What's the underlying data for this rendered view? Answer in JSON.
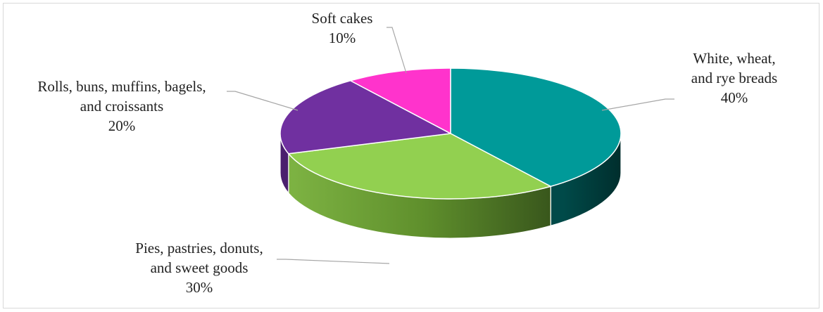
{
  "chart_data": {
    "type": "pie",
    "style": "3d-pie",
    "title": "",
    "categories": [
      "White, wheat, and rye breads",
      "Pies, pastries, donuts, and sweet goods",
      "Rolls, buns, muffins, bagels, and croissants",
      "Soft cakes"
    ],
    "values": [
      40,
      30,
      20,
      10
    ],
    "unit": "%",
    "colors": [
      "#009a99",
      "#92d050",
      "#7030a0",
      "#ff33cc"
    ],
    "side_colors": [
      "#00403f",
      "#5a8f26",
      "#4a1f6e",
      "#b3238f"
    ],
    "label_lines": [
      [
        "White, wheat,",
        "and rye breads",
        "40%"
      ],
      [
        "Pies, pastries, donuts,",
        "and sweet goods",
        "30%"
      ],
      [
        "Rolls, buns, muffins, bagels,",
        "and croissants",
        "20%"
      ],
      [
        "Soft cakes",
        "10%"
      ]
    ],
    "legend": "none",
    "data_labels": "outside-with-leader-lines"
  }
}
